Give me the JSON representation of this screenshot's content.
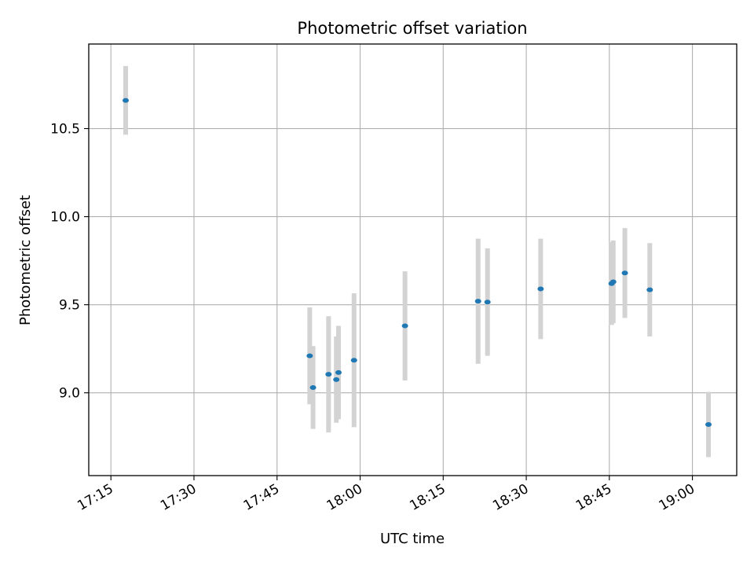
{
  "chart_data": {
    "type": "scatter",
    "title": "Photometric offset variation",
    "xlabel": "UTC time",
    "ylabel": "Photometric offset",
    "grid": true,
    "xlim": [
      "17:11",
      "19:08"
    ],
    "ylim": [
      8.53,
      10.98
    ],
    "x_ticks": [
      "17:15",
      "17:30",
      "17:45",
      "18:00",
      "18:15",
      "18:30",
      "18:45",
      "19:00"
    ],
    "y_ticks": [
      "9.0",
      "9.5",
      "10.0",
      "10.5"
    ],
    "colors": {
      "marker": "#1f77b4",
      "errorbar": "#d3d3d3",
      "grid": "#b0b0b0"
    },
    "series": [
      {
        "points": [
          {
            "x": "17:17:40",
            "y": 10.66,
            "err": 0.195
          },
          {
            "x": "17:50:54",
            "y": 9.21,
            "err": 0.275
          },
          {
            "x": "17:51:30",
            "y": 9.03,
            "err": 0.235
          },
          {
            "x": "17:54:18",
            "y": 9.105,
            "err": 0.33
          },
          {
            "x": "17:55:42",
            "y": 9.075,
            "err": 0.245
          },
          {
            "x": "17:56:06",
            "y": 9.115,
            "err": 0.265
          },
          {
            "x": "17:58:54",
            "y": 9.185,
            "err": 0.38
          },
          {
            "x": "18:08:06",
            "y": 9.38,
            "err": 0.31
          },
          {
            "x": "18:21:18",
            "y": 9.52,
            "err": 0.355
          },
          {
            "x": "18:23:00",
            "y": 9.515,
            "err": 0.305
          },
          {
            "x": "18:32:36",
            "y": 9.59,
            "err": 0.285
          },
          {
            "x": "18:45:24",
            "y": 9.62,
            "err": 0.235
          },
          {
            "x": "18:45:42",
            "y": 9.63,
            "err": 0.235
          },
          {
            "x": "18:47:48",
            "y": 9.68,
            "err": 0.255
          },
          {
            "x": "18:52:18",
            "y": 9.585,
            "err": 0.265
          },
          {
            "x": "19:02:54",
            "y": 8.82,
            "err": 0.185
          }
        ]
      }
    ]
  }
}
